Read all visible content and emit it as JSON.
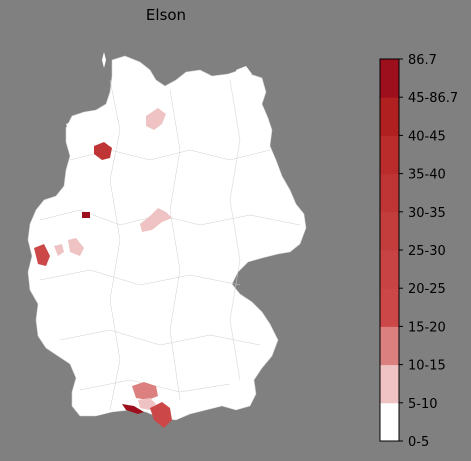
{
  "title": "Elson",
  "colors": {
    "background": "#808080",
    "land": "#ffffff",
    "borders": "#c8c8c8"
  },
  "legend": {
    "boundaries": [
      "0-5",
      "5-10",
      "10-15",
      "15-20",
      "20-25",
      "25-30",
      "30-35",
      "35-40",
      "40-45",
      "45-86.7",
      "86.7"
    ],
    "bins": [
      {
        "range": "0-5",
        "color": "#ffffff"
      },
      {
        "range": "5-10",
        "color": "#efc3c3"
      },
      {
        "range": "10-15",
        "color": "#dc7f7f"
      },
      {
        "range": "15-20",
        "color": "#cc4848"
      },
      {
        "range": "20-25",
        "color": "#c84444"
      },
      {
        "range": "25-30",
        "color": "#c43d3d"
      },
      {
        "range": "30-35",
        "color": "#bf3535"
      },
      {
        "range": "35-40",
        "color": "#ba2c2c"
      },
      {
        "range": "40-45",
        "color": "#b02020"
      },
      {
        "range": "45-86.7",
        "color": "#9e0f1e"
      }
    ]
  },
  "regions": [
    {
      "id": "north-hamburg",
      "bin": "5-10"
    },
    {
      "id": "northwest-ostfriesland",
      "bin": "30-35"
    },
    {
      "id": "west-nrw",
      "bin": "45-86.7"
    },
    {
      "id": "central-kassel",
      "bin": "5-10"
    },
    {
      "id": "west-aachen",
      "bin": "15-20"
    },
    {
      "id": "west-cologne-a",
      "bin": "5-10"
    },
    {
      "id": "west-cologne-b",
      "bin": "5-10"
    },
    {
      "id": "south-bavaria-a",
      "bin": "10-15"
    },
    {
      "id": "south-bavaria-b",
      "bin": "5-10"
    },
    {
      "id": "south-alps-east",
      "bin": "15-20"
    },
    {
      "id": "south-alps-west",
      "bin": "45-86.7"
    }
  ]
}
